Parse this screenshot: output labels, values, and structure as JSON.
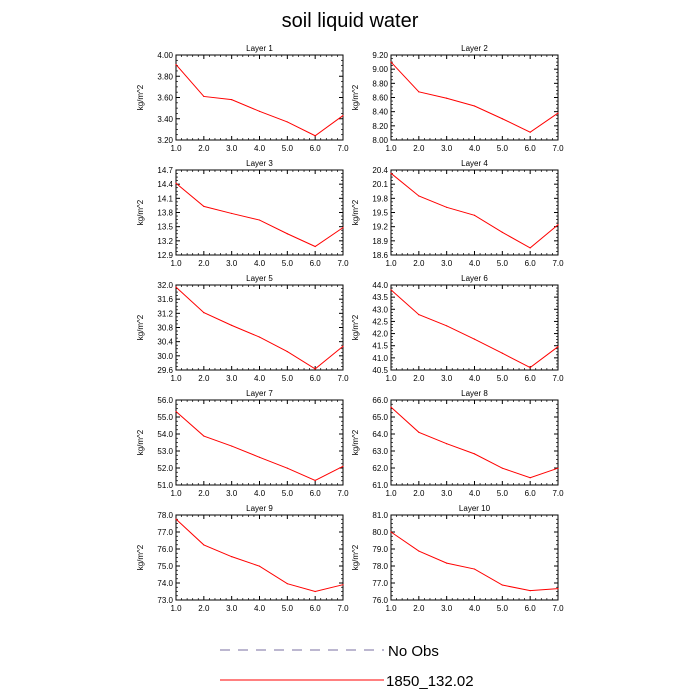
{
  "title": "soil liquid water",
  "legend": {
    "entries": [
      {
        "label": "No Obs",
        "style": "dashed",
        "color": "#7a6fa0"
      },
      {
        "label": "1850_132.02",
        "style": "solid",
        "color": "#ff0000"
      }
    ]
  },
  "chart_data": [
    {
      "type": "line",
      "title": "Layer 1",
      "ylabel": "kg/m^2",
      "x": [
        1,
        2,
        3,
        4,
        5,
        6,
        7
      ],
      "xlim": [
        1,
        7
      ],
      "xticks": [
        "1.0",
        "2.0",
        "3.0",
        "4.0",
        "5.0",
        "6.0",
        "7.0"
      ],
      "ylim": [
        3.2,
        4.0
      ],
      "yticks": [
        "3.20",
        "3.40",
        "3.60",
        "3.80",
        "4.00"
      ],
      "series": [
        {
          "name": "1850_132.02",
          "color": "#ff0000",
          "values": [
            3.91,
            3.61,
            3.58,
            3.47,
            3.37,
            3.24,
            3.43
          ]
        }
      ]
    },
    {
      "type": "line",
      "title": "Layer 2",
      "ylabel": "kg/m^2",
      "x": [
        1,
        2,
        3,
        4,
        5,
        6,
        7
      ],
      "xlim": [
        1,
        7
      ],
      "xticks": [
        "1.0",
        "2.0",
        "3.0",
        "4.0",
        "5.0",
        "6.0",
        "7.0"
      ],
      "ylim": [
        8.0,
        9.2
      ],
      "yticks": [
        "8.00",
        "8.20",
        "8.40",
        "8.60",
        "8.80",
        "9.00",
        "9.20"
      ],
      "series": [
        {
          "name": "1850_132.02",
          "color": "#ff0000",
          "values": [
            9.1,
            8.68,
            8.59,
            8.48,
            8.3,
            8.11,
            8.38
          ]
        }
      ]
    },
    {
      "type": "line",
      "title": "Layer 3",
      "ylabel": "kg/m^2",
      "x": [
        1,
        2,
        3,
        4,
        5,
        6,
        7
      ],
      "xlim": [
        1,
        7
      ],
      "xticks": [
        "1.0",
        "2.0",
        "3.0",
        "4.0",
        "5.0",
        "6.0",
        "7.0"
      ],
      "ylim": [
        12.9,
        14.7
      ],
      "yticks": [
        "12.9",
        "13.2",
        "13.5",
        "13.8",
        "14.1",
        "14.4",
        "14.7"
      ],
      "series": [
        {
          "name": "1850_132.02",
          "color": "#ff0000",
          "values": [
            14.42,
            13.93,
            13.78,
            13.64,
            13.35,
            13.08,
            13.48
          ]
        }
      ]
    },
    {
      "type": "line",
      "title": "Layer 4",
      "ylabel": "kg/m^2",
      "x": [
        1,
        2,
        3,
        4,
        5,
        6,
        7
      ],
      "xlim": [
        1,
        7
      ],
      "xticks": [
        "1.0",
        "2.0",
        "3.0",
        "4.0",
        "5.0",
        "6.0",
        "7.0"
      ],
      "ylim": [
        18.6,
        20.4
      ],
      "yticks": [
        "18.6",
        "18.9",
        "19.2",
        "19.5",
        "19.8",
        "20.1",
        "20.4"
      ],
      "series": [
        {
          "name": "1850_132.02",
          "color": "#ff0000",
          "values": [
            20.33,
            19.85,
            19.61,
            19.44,
            19.08,
            18.75,
            19.24
          ]
        }
      ]
    },
    {
      "type": "line",
      "title": "Layer 5",
      "ylabel": "kg/m^2",
      "x": [
        1,
        2,
        3,
        4,
        5,
        6,
        7
      ],
      "xlim": [
        1,
        7
      ],
      "xticks": [
        "1.0",
        "2.0",
        "3.0",
        "4.0",
        "5.0",
        "6.0",
        "7.0"
      ],
      "ylim": [
        29.6,
        32.0
      ],
      "yticks": [
        "29.6",
        "30.0",
        "30.4",
        "30.8",
        "31.2",
        "31.6",
        "32.0"
      ],
      "series": [
        {
          "name": "1850_132.02",
          "color": "#ff0000",
          "values": [
            31.94,
            31.22,
            30.86,
            30.53,
            30.12,
            29.63,
            30.27
          ]
        }
      ]
    },
    {
      "type": "line",
      "title": "Layer 6",
      "ylabel": "kg/m^2",
      "x": [
        1,
        2,
        3,
        4,
        5,
        6,
        7
      ],
      "xlim": [
        1,
        7
      ],
      "xticks": [
        "1.0",
        "2.0",
        "3.0",
        "4.0",
        "5.0",
        "6.0",
        "7.0"
      ],
      "ylim": [
        40.5,
        44.0
      ],
      "yticks": [
        "40.5",
        "41.0",
        "41.5",
        "42.0",
        "42.5",
        "43.0",
        "43.5",
        "44.0"
      ],
      "series": [
        {
          "name": "1850_132.02",
          "color": "#ff0000",
          "values": [
            43.8,
            42.78,
            42.32,
            41.77,
            41.19,
            40.6,
            41.46
          ]
        }
      ]
    },
    {
      "type": "line",
      "title": "Layer 7",
      "ylabel": "kg/m^2",
      "x": [
        1,
        2,
        3,
        4,
        5,
        6,
        7
      ],
      "xlim": [
        1,
        7
      ],
      "xticks": [
        "1.0",
        "2.0",
        "3.0",
        "4.0",
        "5.0",
        "6.0",
        "7.0"
      ],
      "ylim": [
        51.0,
        56.0
      ],
      "yticks": [
        "51.0",
        "52.0",
        "53.0",
        "54.0",
        "55.0",
        "56.0"
      ],
      "series": [
        {
          "name": "1850_132.02",
          "color": "#ff0000",
          "values": [
            55.32,
            53.88,
            53.29,
            52.63,
            51.99,
            51.27,
            52.1
          ]
        }
      ]
    },
    {
      "type": "line",
      "title": "Layer 8",
      "ylabel": "kg/m^2",
      "x": [
        1,
        2,
        3,
        4,
        5,
        6,
        7
      ],
      "xlim": [
        1,
        7
      ],
      "xticks": [
        "1.0",
        "2.0",
        "3.0",
        "4.0",
        "5.0",
        "6.0",
        "7.0"
      ],
      "ylim": [
        61.0,
        66.0
      ],
      "yticks": [
        "61.0",
        "62.0",
        "63.0",
        "64.0",
        "65.0",
        "66.0"
      ],
      "series": [
        {
          "name": "1850_132.02",
          "color": "#ff0000",
          "values": [
            65.58,
            64.1,
            63.43,
            62.83,
            61.99,
            61.43,
            61.99
          ]
        }
      ]
    },
    {
      "type": "line",
      "title": "Layer 9",
      "ylabel": "kg/m^2",
      "x": [
        1,
        2,
        3,
        4,
        5,
        6,
        7
      ],
      "xlim": [
        1,
        7
      ],
      "xticks": [
        "1.0",
        "2.0",
        "3.0",
        "4.0",
        "5.0",
        "6.0",
        "7.0"
      ],
      "ylim": [
        73.0,
        78.0
      ],
      "yticks": [
        "73.0",
        "74.0",
        "75.0",
        "76.0",
        "77.0",
        "78.0"
      ],
      "series": [
        {
          "name": "1850_132.02",
          "color": "#ff0000",
          "values": [
            77.76,
            76.24,
            75.55,
            74.99,
            73.96,
            73.5,
            73.9
          ]
        }
      ]
    },
    {
      "type": "line",
      "title": "Layer 10",
      "ylabel": "kg/m^2",
      "x": [
        1,
        2,
        3,
        4,
        5,
        6,
        7
      ],
      "xlim": [
        1,
        7
      ],
      "xticks": [
        "1.0",
        "2.0",
        "3.0",
        "4.0",
        "5.0",
        "6.0",
        "7.0"
      ],
      "ylim": [
        76.0,
        81.0
      ],
      "yticks": [
        "76.0",
        "77.0",
        "78.0",
        "79.0",
        "80.0",
        "81.0"
      ],
      "series": [
        {
          "name": "1850_132.02",
          "color": "#ff0000",
          "values": [
            80.0,
            78.88,
            78.17,
            77.82,
            76.88,
            76.55,
            76.67
          ]
        }
      ]
    }
  ]
}
